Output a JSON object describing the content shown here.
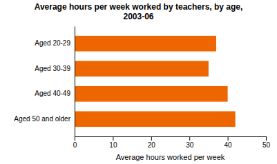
{
  "chart_data": {
    "type": "bar",
    "orientation": "horizontal",
    "title": "Average hours per week worked by teachers, by age,\n2003-06",
    "categories": [
      "Aged 20-29",
      "Aged 30-39",
      "Aged 40-49",
      "Aged 50 and older"
    ],
    "values": [
      37,
      35,
      40,
      42
    ],
    "color": "#EE6600",
    "xlabel": "Average hours worked per week",
    "xlim": [
      0,
      50
    ],
    "xticks": [
      0,
      10,
      20,
      30,
      40,
      50
    ]
  }
}
